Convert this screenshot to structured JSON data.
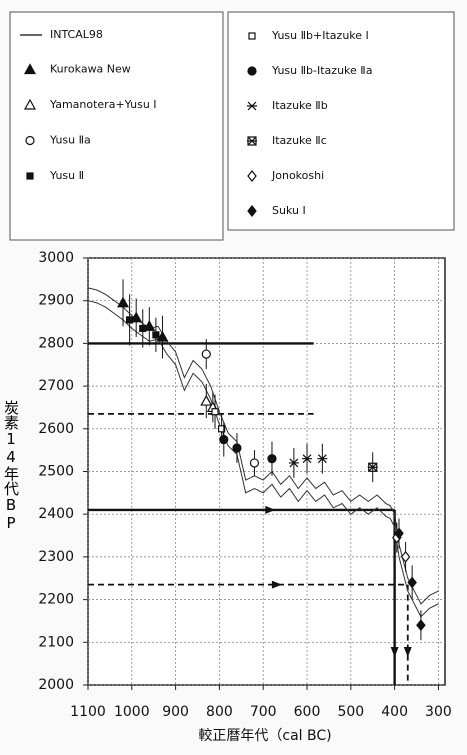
{
  "chart_data": {
    "type": "scatter",
    "x_label": "較正暦年代（cal BC)",
    "y_label": "炭素14年代BP",
    "xlim": [
      1100,
      285
    ],
    "ylim": [
      2000,
      3000
    ],
    "xticks": [
      1100,
      1000,
      900,
      800,
      700,
      600,
      500,
      400,
      300
    ],
    "yticks": [
      2000,
      2100,
      2200,
      2300,
      2400,
      2500,
      2600,
      2700,
      2800,
      2900,
      3000
    ],
    "grid": true,
    "series": [
      {
        "name": "INTCAL98",
        "color": "#333333",
        "marker": "line",
        "x": [
          1100,
          1080,
          1060,
          1040,
          1020,
          1000,
          980,
          960,
          940,
          920,
          900,
          880,
          860,
          840,
          820,
          800,
          780,
          760,
          740,
          720,
          700,
          680,
          660,
          640,
          620,
          600,
          580,
          560,
          540,
          520,
          500,
          480,
          460,
          440,
          420,
          410,
          400,
          390,
          380,
          370,
          360,
          350,
          340,
          330,
          320,
          310,
          300
        ],
        "upper": [
          2930,
          2925,
          2915,
          2900,
          2885,
          2865,
          2850,
          2835,
          2840,
          2805,
          2780,
          2720,
          2760,
          2740,
          2700,
          2640,
          2590,
          2570,
          2480,
          2490,
          2480,
          2500,
          2470,
          2490,
          2460,
          2485,
          2460,
          2475,
          2445,
          2455,
          2430,
          2445,
          2430,
          2445,
          2425,
          2420,
          2400,
          2330,
          2290,
          2250,
          2230,
          2210,
          2190,
          2200,
          2210,
          2215,
          2220
        ],
        "lower": [
          2900,
          2895,
          2885,
          2870,
          2855,
          2835,
          2820,
          2805,
          2810,
          2775,
          2750,
          2690,
          2730,
          2710,
          2670,
          2610,
          2560,
          2540,
          2450,
          2460,
          2450,
          2470,
          2440,
          2460,
          2430,
          2455,
          2430,
          2445,
          2415,
          2425,
          2400,
          2415,
          2400,
          2415,
          2395,
          2390,
          2370,
          2300,
          2260,
          2220,
          2200,
          2180,
          2160,
          2170,
          2180,
          2185,
          2190
        ]
      },
      {
        "name": "Kurokawa New",
        "color": "#111111",
        "marker": "triangle-filled",
        "x": [
          1020,
          990,
          960,
          930
        ],
        "values": [
          2895,
          2860,
          2840,
          2815
        ],
        "errors": [
          55,
          45,
          45,
          50
        ]
      },
      {
        "name": "Yamanotera+Yusu Ⅰ",
        "color": "#111111",
        "marker": "triangle-open",
        "x": [
          830,
          815
        ],
        "values": [
          2665,
          2650
        ],
        "errors": [
          40,
          35
        ]
      },
      {
        "name": "Yusu Ⅱa",
        "color": "#111111",
        "marker": "circle-open",
        "x": [
          830,
          720
        ],
        "values": [
          2775,
          2520
        ],
        "errors": [
          35,
          30
        ]
      },
      {
        "name": "Yusu Ⅱ",
        "color": "#111111",
        "marker": "square-filled",
        "x": [
          1005,
          975,
          945
        ],
        "values": [
          2855,
          2835,
          2820
        ],
        "errors": [
          60,
          45,
          40
        ]
      },
      {
        "name": "Yusu Ⅱb+Itazuke Ⅰ",
        "color": "#111111",
        "marker": "square-open",
        "x": [
          810,
          795
        ],
        "values": [
          2640,
          2600
        ],
        "errors": [
          40,
          35
        ]
      },
      {
        "name": "Yusu Ⅱb-Itazuke Ⅱa",
        "color": "#111111",
        "marker": "circle-filled",
        "x": [
          790,
          760,
          680
        ],
        "values": [
          2575,
          2555,
          2530
        ],
        "errors": [
          40,
          35,
          40
        ]
      },
      {
        "name": "Itazuke Ⅱb",
        "color": "#111111",
        "marker": "asterisk",
        "x": [
          630,
          600,
          565
        ],
        "values": [
          2520,
          2530,
          2530
        ],
        "errors": [
          35,
          35,
          35
        ]
      },
      {
        "name": "Itazuke Ⅱc",
        "color": "#111111",
        "marker": "asterisk-box",
        "x": [
          450
        ],
        "values": [
          2510
        ],
        "errors": [
          35
        ]
      },
      {
        "name": "Jonokoshi",
        "color": "#111111",
        "marker": "diamond-open",
        "x": [
          395,
          375
        ],
        "values": [
          2345,
          2300
        ],
        "errors": [
          35,
          35
        ]
      },
      {
        "name": "Suku Ⅰ",
        "color": "#111111",
        "marker": "diamond-filled",
        "x": [
          390,
          360,
          340
        ],
        "values": [
          2355,
          2240,
          2140
        ],
        "errors": [
          35,
          40,
          35
        ]
      }
    ],
    "reference_lines": [
      {
        "y": 2800,
        "x_end": 585,
        "dashed": false,
        "drop": false
      },
      {
        "y": 2635,
        "x_end": 585,
        "dashed": true,
        "drop": false
      },
      {
        "y": 2410,
        "x_end": 400,
        "dashed": false,
        "drop": true
      },
      {
        "y": 2235,
        "x_end": 370,
        "dashed": true,
        "drop": true
      }
    ]
  }
}
